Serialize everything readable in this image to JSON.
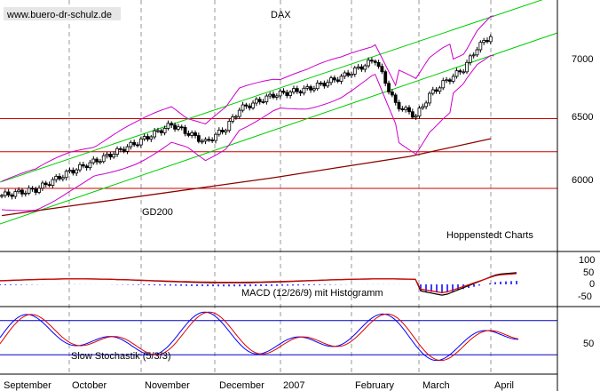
{
  "header": {
    "watermark": "www.buero-dr-schulz.de",
    "title": "DAX",
    "credit": "Hoppenstedt Charts"
  },
  "chart_data": [
    {
      "type": "line",
      "title": "DAX",
      "x": [
        "September",
        "October",
        "November",
        "December",
        "2007",
        "February",
        "March",
        "April"
      ],
      "yticks": [
        6000,
        6500,
        7000
      ],
      "ylim": [
        5600,
        7500
      ],
      "indicators": {
        "moving_average": "GD200",
        "bands": "Bollinger",
        "trend_channel": true
      },
      "horizontal_levels": [
        6500,
        6220,
        5910
      ],
      "gd200": {
        "x": [
          0,
          1,
          2,
          3,
          4,
          5,
          6,
          7.2
        ],
        "values": [
          5680,
          5760,
          5840,
          5920,
          6000,
          6090,
          6180,
          6330
        ]
      },
      "close_approx": {
        "x": [
          0,
          0.5,
          1,
          1.5,
          2,
          2.5,
          3,
          3.3,
          3.5,
          4,
          4.5,
          5,
          5.5,
          5.8,
          6.1,
          6.3,
          6.5,
          6.8,
          7.0,
          7.2
        ],
        "values": [
          5850,
          5900,
          6050,
          6170,
          6300,
          6450,
          6300,
          6420,
          6580,
          6700,
          6750,
          6850,
          7000,
          6620,
          6520,
          6700,
          6800,
          6920,
          7100,
          7200
        ]
      }
    },
    {
      "type": "line",
      "title": "MACD (12/26/9) mit Histogramm",
      "yticks": [
        100,
        50,
        0,
        -50
      ],
      "ylim": [
        -80,
        130
      ]
    },
    {
      "type": "line",
      "title": "Slow Stochastik (5/3/3)",
      "yticks": [
        50
      ],
      "ylim": [
        0,
        100
      ],
      "reference_lines": [
        80,
        20
      ]
    }
  ],
  "xaxis_labels": [
    "September",
    "October",
    "November",
    "December",
    "2007",
    "February",
    "March",
    "April"
  ],
  "colors": {
    "trend": "#00cc00",
    "bollinger": "#cc00cc",
    "gd200": "#8b0000",
    "levels": "#cc0000",
    "stoch_ref": "#0000cc",
    "signal_red": "#dd0000",
    "blue": "#0000ff"
  }
}
